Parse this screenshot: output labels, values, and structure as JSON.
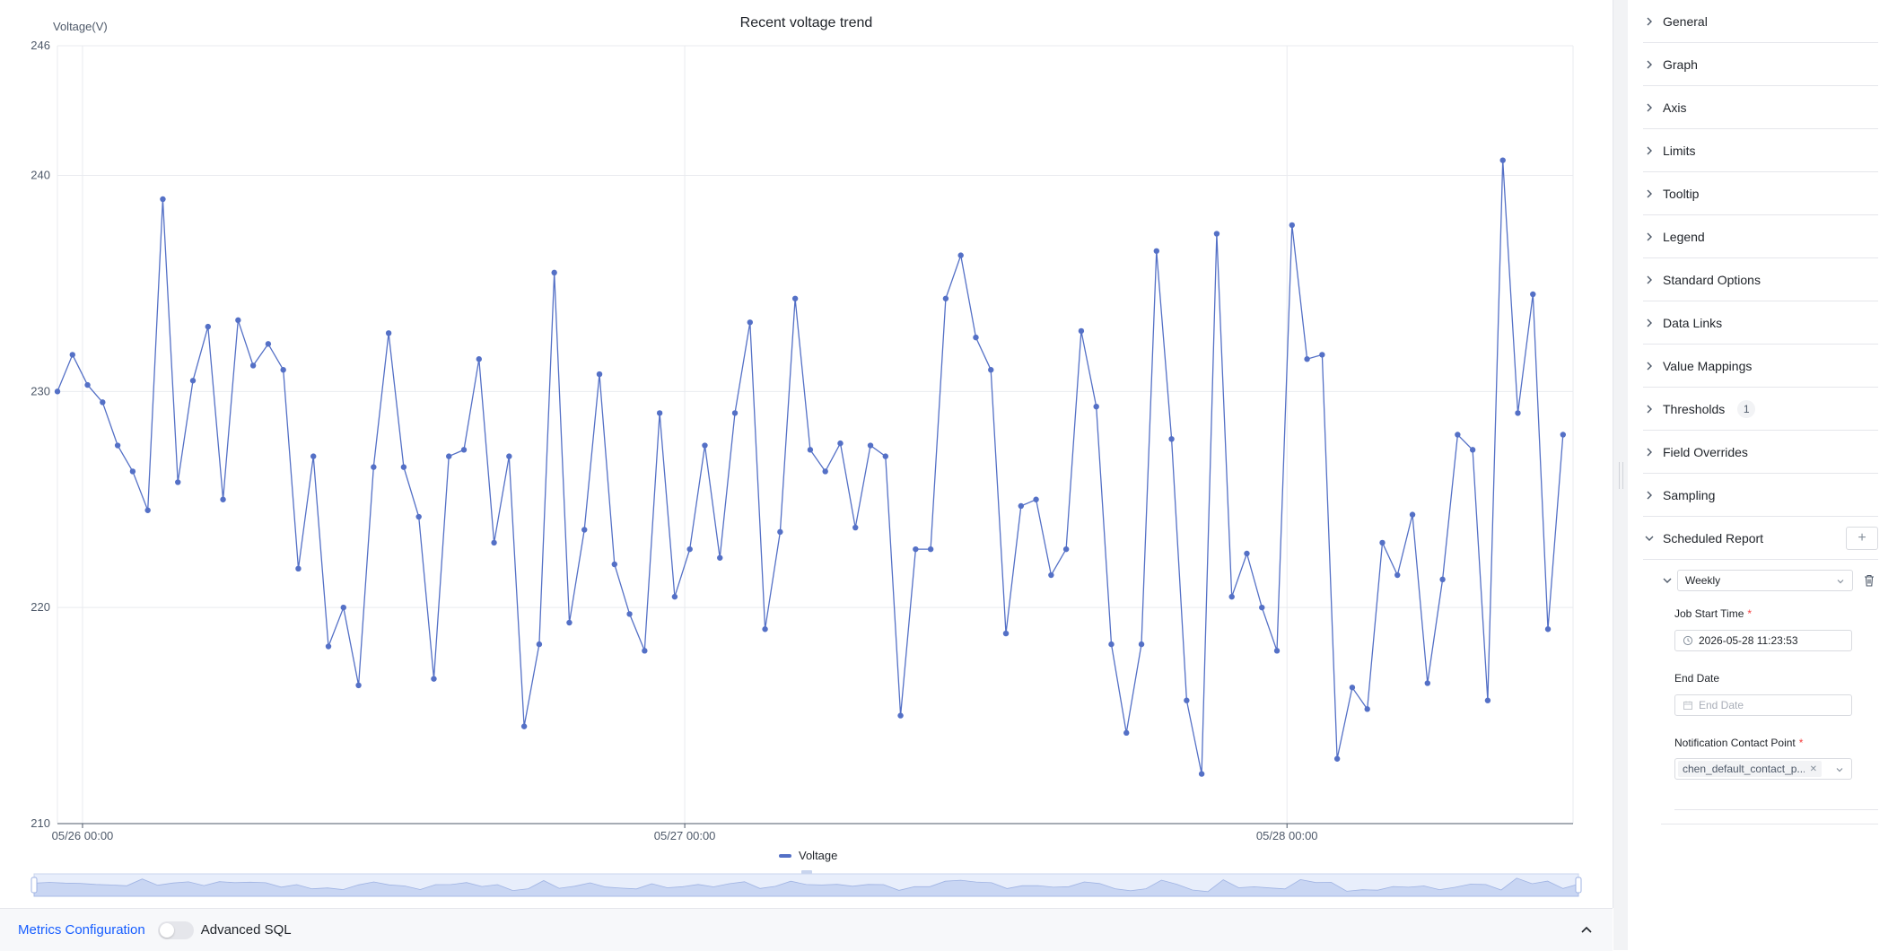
{
  "chart": {
    "title": "Recent voltage trend",
    "y_axis_label": "Voltage(V)",
    "legend_label": "Voltage",
    "series_color": "#5470c6"
  },
  "chart_data": {
    "type": "line",
    "title": "Recent voltage trend",
    "ylabel": "Voltage(V)",
    "ylim": [
      210,
      246
    ],
    "y_ticks": [
      210,
      220,
      230,
      240,
      246
    ],
    "x_ticks": [
      "05/26 00:00",
      "05/27 00:00",
      "05/28 00:00"
    ],
    "x_tick_hours": [
      0,
      24,
      48
    ],
    "xlim_hours": [
      -1,
      59.4
    ],
    "grid": true,
    "legend_position": "bottom",
    "series": [
      {
        "name": "Voltage",
        "x_hours": [
          -1,
          -0.4,
          0.2,
          0.8,
          1.4,
          2,
          2.6,
          3.2,
          3.8,
          4.4,
          5,
          5.6,
          6.2,
          6.8,
          7.4,
          8,
          8.6,
          9.2,
          9.8,
          10.4,
          11,
          11.6,
          12.2,
          12.8,
          13.4,
          14,
          14.6,
          15.2,
          15.8,
          16.4,
          17,
          17.6,
          18.2,
          18.8,
          19.4,
          20,
          20.6,
          21.2,
          21.8,
          22.4,
          23,
          23.6,
          24.2,
          24.8,
          25.4,
          26,
          26.6,
          27.2,
          27.8,
          28.4,
          29,
          29.6,
          30.2,
          30.8,
          31.4,
          32,
          32.6,
          33.2,
          33.8,
          34.4,
          35,
          35.6,
          36.2,
          36.8,
          37.4,
          38,
          38.6,
          39.2,
          39.8,
          40.4,
          41,
          41.6,
          42.2,
          42.8,
          43.4,
          44,
          44.6,
          45.2,
          45.8,
          46.4,
          47,
          47.6,
          48.2,
          48.8,
          49.4,
          50,
          50.6,
          51.2,
          51.8,
          52.4,
          53,
          53.6,
          54.2,
          54.8,
          55.4,
          56,
          56.6,
          57.2,
          57.8,
          58.4,
          59
        ],
        "values": [
          230,
          231.7,
          230.3,
          229.5,
          227.5,
          226.3,
          224.5,
          238.9,
          225.8,
          230.5,
          233,
          225,
          233.3,
          231.2,
          232.2,
          231,
          221.8,
          227,
          218.2,
          220,
          216.4,
          226.5,
          232.7,
          226.5,
          224.2,
          216.7,
          227,
          227.3,
          231.5,
          223,
          227,
          214.5,
          218.3,
          235.5,
          219.3,
          223.6,
          230.8,
          222,
          219.7,
          218,
          229,
          220.5,
          222.7,
          227.5,
          222.3,
          229,
          233.2,
          219,
          223.5,
          234.3,
          227.3,
          226.3,
          227.6,
          223.7,
          227.5,
          227,
          215,
          222.7,
          222.7,
          234.3,
          236.3,
          232.5,
          231,
          218.8,
          224.7,
          225,
          221.5,
          222.7,
          232.8,
          229.3,
          218.3,
          214.2,
          218.3,
          236.5,
          227.8,
          215.7,
          212.3,
          237.3,
          220.5,
          222.5,
          220,
          218,
          237.7,
          231.5,
          231.7,
          213,
          216.3,
          215.3,
          223,
          221.5,
          224.3,
          216.5,
          221.3,
          228,
          227.3,
          215.7,
          240.7,
          229,
          234.5,
          219,
          228
        ]
      }
    ]
  },
  "bottom_bar": {
    "metrics_tab": "Metrics Configuration",
    "advanced_sql_label": "Advanced SQL"
  },
  "sidebar": {
    "sections": [
      {
        "label": "General"
      },
      {
        "label": "Graph"
      },
      {
        "label": "Axis"
      },
      {
        "label": "Limits"
      },
      {
        "label": "Tooltip"
      },
      {
        "label": "Legend"
      },
      {
        "label": "Standard Options"
      },
      {
        "label": "Data Links"
      },
      {
        "label": "Value Mappings"
      },
      {
        "label": "Thresholds",
        "badge": "1"
      },
      {
        "label": "Field Overrides"
      },
      {
        "label": "Sampling"
      }
    ],
    "scheduled_report": {
      "label": "Scheduled Report",
      "add_icon": "+",
      "frequency": "Weekly",
      "job_start_label": "Job Start Time",
      "job_start_value": "2026-05-28 11:23:53",
      "end_date_label": "End Date",
      "end_date_placeholder": "End Date",
      "contact_label": "Notification Contact Point",
      "contact_value": "chen_default_contact_p...",
      "required_mark": "*"
    }
  }
}
